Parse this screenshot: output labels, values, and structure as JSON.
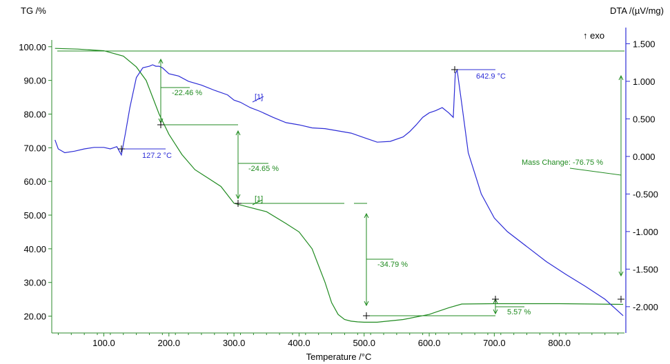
{
  "chart_data": {
    "type": "line",
    "title": "",
    "xlabel": "Temperature /°C",
    "ylabel_left": "TG /%",
    "ylabel_right": "DTA /(µV/mg)",
    "exo_label": "↑ exo",
    "xlim": [
      20,
      900
    ],
    "ylim_left": [
      15,
      102
    ],
    "ylim_right": [
      -2.35,
      1.55
    ],
    "x_ticks": [
      100,
      200,
      300,
      400,
      500,
      600,
      700,
      800
    ],
    "x_tick_labels": [
      "100.0",
      "200.0",
      "300.0",
      "400.0",
      "500.0",
      "600.0",
      "700.0",
      "800.0"
    ],
    "y_left_ticks": [
      100,
      90,
      80,
      70,
      60,
      50,
      40,
      30,
      20
    ],
    "y_left_tick_labels": [
      "100.00",
      "90.00",
      "80.00",
      "70.00",
      "60.00",
      "50.00",
      "40.00",
      "30.00",
      "20.00"
    ],
    "y_right_ticks": [
      1.5,
      1.0,
      0.5,
      0.0,
      -0.5,
      -1.0,
      -1.5,
      -2.0
    ],
    "y_right_tick_labels": [
      "1.500",
      "1.000",
      "0.500",
      "0.000",
      "-0.500",
      "-1.000",
      "-1.500",
      "-2.000"
    ],
    "grid": false,
    "colors": {
      "tg": "#1f8a1f",
      "dta": "#2b2bd6",
      "marker": "#000000"
    },
    "series": [
      {
        "name": "TG",
        "axis": "left",
        "color": "#1f8a1f",
        "x": [
          25,
          60,
          100,
          130,
          150,
          165,
          175,
          185,
          200,
          220,
          240,
          260,
          280,
          300,
          320,
          350,
          380,
          400,
          420,
          440,
          450,
          460,
          470,
          480,
          490,
          500,
          520,
          560,
          600,
          630,
          650,
          700,
          750,
          800,
          850,
          898
        ],
        "y": [
          99.5,
          99.3,
          98.8,
          97.2,
          94,
          90,
          85,
          80,
          74,
          68,
          63.5,
          61,
          58.5,
          53.5,
          52.5,
          51,
          47.5,
          45,
          40,
          30,
          24,
          20.5,
          19,
          18.5,
          18.3,
          18.2,
          18.2,
          19,
          20.5,
          22.5,
          23.6,
          23.7,
          23.7,
          23.7,
          23.6,
          23.5
        ]
      },
      {
        "name": "DTA",
        "axis": "right",
        "color": "#2b2bd6",
        "x": [
          25,
          30,
          40,
          55,
          70,
          85,
          100,
          110,
          120,
          127,
          133,
          140,
          150,
          160,
          170,
          175,
          180,
          185,
          190,
          200,
          215,
          230,
          250,
          270,
          290,
          300,
          310,
          325,
          340,
          360,
          380,
          400,
          420,
          440,
          460,
          480,
          500,
          520,
          540,
          560,
          570,
          580,
          590,
          600,
          610,
          620,
          630,
          637,
          640,
          642.9,
          650,
          660,
          680,
          700,
          720,
          750,
          780,
          810,
          840,
          870,
          898
        ],
        "y": [
          0.22,
          0.1,
          0.05,
          0.07,
          0.1,
          0.12,
          0.12,
          0.1,
          0.13,
          0.02,
          0.3,
          0.65,
          1.05,
          1.18,
          1.2,
          1.22,
          1.2,
          1.2,
          1.18,
          1.1,
          1.07,
          1.0,
          0.95,
          0.88,
          0.82,
          0.75,
          0.72,
          0.65,
          0.6,
          0.52,
          0.45,
          0.42,
          0.38,
          0.37,
          0.34,
          0.31,
          0.25,
          0.19,
          0.2,
          0.26,
          0.33,
          0.42,
          0.52,
          0.58,
          0.61,
          0.65,
          0.58,
          0.52,
          1.1,
          1.15,
          0.7,
          0.05,
          -0.5,
          -0.82,
          -1.0,
          -1.2,
          -1.4,
          -1.57,
          -1.73,
          -1.9,
          -2.12
        ]
      }
    ],
    "annotations": {
      "tg_steps": [
        "-22.46 %",
        "-24.65 %",
        "-34.79 %",
        "5.57 %"
      ],
      "mass_change": "Mass Change: -76.75 %",
      "onset_temp": "127.2 °C",
      "peak_temp": "642.9 °C",
      "marker_dta": "[1]",
      "marker_tg": "[1]"
    }
  }
}
